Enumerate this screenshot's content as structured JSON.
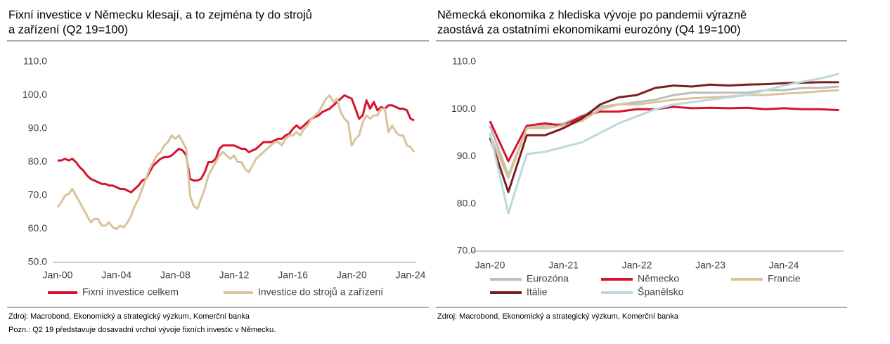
{
  "chart_data": [
    {
      "type": "line",
      "title": [
        "Fixní investice v Německu klesají, a to zejména ty do strojů",
        "a zařízení (Q2 19=100)"
      ],
      "categories": [
        "Jan-00",
        null,
        null,
        null,
        null,
        null,
        null,
        null,
        null,
        null,
        null,
        null,
        null,
        null,
        null,
        null,
        "Jan-04",
        null,
        null,
        null,
        null,
        null,
        null,
        null,
        null,
        null,
        null,
        null,
        null,
        null,
        null,
        null,
        "Jan-08",
        null,
        null,
        null,
        null,
        null,
        null,
        null,
        null,
        null,
        null,
        null,
        null,
        null,
        null,
        null,
        "Jan-12",
        null,
        null,
        null,
        null,
        null,
        null,
        null,
        null,
        null,
        null,
        null,
        null,
        null,
        null,
        null,
        "Jan-16",
        null,
        null,
        null,
        null,
        null,
        null,
        null,
        null,
        null,
        null,
        null,
        null,
        null,
        null,
        null,
        "Jan-20",
        null,
        null,
        null,
        null,
        null,
        null,
        null,
        null,
        null,
        null,
        null,
        null,
        null,
        null,
        null,
        "Jan-24",
        null
      ],
      "series": [
        {
          "name": "Fixní investice celkem",
          "color": "#d7132f",
          "values": [
            80.5,
            80.5,
            81,
            80.5,
            81,
            80,
            78.5,
            77.5,
            76,
            75,
            74.5,
            74,
            73.5,
            73.5,
            73,
            73,
            72.5,
            72,
            72,
            71.5,
            71,
            72,
            73,
            74.5,
            75,
            77,
            79,
            80,
            81,
            81.5,
            81.5,
            82,
            83,
            84,
            83.5,
            82,
            75,
            74.5,
            74.5,
            75,
            77,
            80,
            80,
            81,
            84,
            85,
            85,
            85,
            85,
            84.5,
            84,
            84,
            83,
            83.5,
            84,
            85,
            86,
            86,
            86,
            86.5,
            87,
            87,
            88,
            88.5,
            90,
            91,
            90,
            91,
            92,
            93,
            93.5,
            94,
            95,
            95.5,
            96,
            97,
            98,
            99,
            100,
            99.5,
            99,
            96,
            93,
            94,
            98.5,
            96,
            98,
            95.5,
            96.5,
            96,
            97,
            97,
            96.5,
            96,
            96,
            95.5,
            93,
            92.5
          ]
        },
        {
          "name": "Investice do strojů a zařízení",
          "color": "#d8c49a",
          "values": [
            66.5,
            68,
            70,
            70.5,
            72,
            70,
            68,
            66,
            64,
            62,
            63,
            63,
            61,
            61,
            62,
            60.5,
            60,
            61,
            60.5,
            62,
            64,
            67,
            69,
            72,
            75,
            78,
            80,
            82,
            83,
            85,
            86,
            88,
            87,
            88,
            86,
            84,
            70,
            67,
            66,
            69,
            72,
            76,
            78,
            80,
            82,
            83,
            82,
            81,
            82,
            80,
            80,
            78,
            77,
            79,
            81,
            82,
            83,
            84,
            85,
            86,
            86,
            85,
            87,
            88,
            88,
            89,
            88,
            90,
            91,
            93,
            94,
            95,
            97,
            99,
            100,
            98,
            99,
            95,
            93,
            92,
            85,
            87,
            88,
            92,
            94,
            93,
            94,
            94,
            96,
            96,
            89,
            91,
            89,
            88,
            88,
            85,
            84.5,
            83
          ]
        }
      ],
      "ylim": [
        50,
        110
      ],
      "yticks": [
        {
          "value": 50,
          "label": "50.0"
        },
        {
          "value": 60,
          "label": "60.0"
        },
        {
          "value": 70,
          "label": "70.0"
        },
        {
          "value": 80,
          "label": "80.0"
        },
        {
          "value": 90,
          "label": "90.0"
        },
        {
          "value": 100,
          "label": "100.0"
        },
        {
          "value": 110,
          "label": "110.0"
        }
      ],
      "source": "Zdroj: Macrobond, Ekonomický a strategický výzkum, Komerční banka",
      "note": "Pozn.: Q2 19 představuje dosavadní vrchol vývoje fixních investic v Německu."
    },
    {
      "type": "line",
      "title": [
        "Německá ekonomika z hlediska vývoje po pandemii výrazně",
        "zaostává za ostatními ekonomikami eurozóny (Q4 19=100)"
      ],
      "categories": [
        "Jan-20",
        null,
        null,
        null,
        "Jan-21",
        null,
        null,
        null,
        "Jan-22",
        null,
        null,
        null,
        "Jan-23",
        null,
        null,
        null,
        "Jan-24",
        null,
        null,
        null
      ],
      "series": [
        {
          "name": "Eurozóna",
          "color": "#bdbdbd",
          "values": [
            96.5,
            86,
            96,
            96.5,
            97,
            98.5,
            100.5,
            101,
            101.5,
            102,
            103,
            103.5,
            103.5,
            103.5,
            103.5,
            104,
            104,
            104.5,
            104.5,
            104.8
          ]
        },
        {
          "name": "Německo",
          "color": "#d7132f",
          "values": [
            97.5,
            89,
            96.5,
            97,
            96.5,
            98.5,
            99.5,
            99.5,
            100,
            100,
            100.5,
            100.2,
            100.3,
            100.2,
            100.3,
            100,
            100.2,
            100,
            100,
            99.8
          ]
        },
        {
          "name": "Francie",
          "color": "#d8c49a",
          "values": [
            94.5,
            85.5,
            96,
            96,
            96.5,
            97.5,
            100,
            101,
            101,
            101.5,
            102,
            102.3,
            102.5,
            102.7,
            103,
            103,
            103.3,
            103.5,
            103.8,
            104
          ]
        },
        {
          "name": "Itálie",
          "color": "#7a1e1e",
          "values": [
            94,
            82.5,
            94.5,
            94.5,
            96,
            98,
            101,
            102.5,
            103,
            104.5,
            105,
            104.8,
            105.2,
            105,
            105.2,
            105.3,
            105.5,
            105.6,
            105.7,
            105.7
          ]
        },
        {
          "name": "Španělsko",
          "color": "#bcd9dd",
          "values": [
            95,
            78,
            90.5,
            91,
            92,
            93,
            95,
            97,
            98.5,
            100,
            101,
            101.5,
            102,
            102.5,
            103,
            104,
            105,
            105.8,
            106.5,
            107.5
          ]
        }
      ],
      "ylim": [
        70,
        110
      ],
      "yticks": [
        {
          "value": 70,
          "label": "70.0"
        },
        {
          "value": 80,
          "label": "80.0"
        },
        {
          "value": 90,
          "label": "90.0"
        },
        {
          "value": 100,
          "label": "100.0"
        },
        {
          "value": 110,
          "label": "110.0"
        }
      ],
      "source": "Zdroj: Macrobond, Ekonomický a strategický výzkum, Komerční banka"
    }
  ]
}
